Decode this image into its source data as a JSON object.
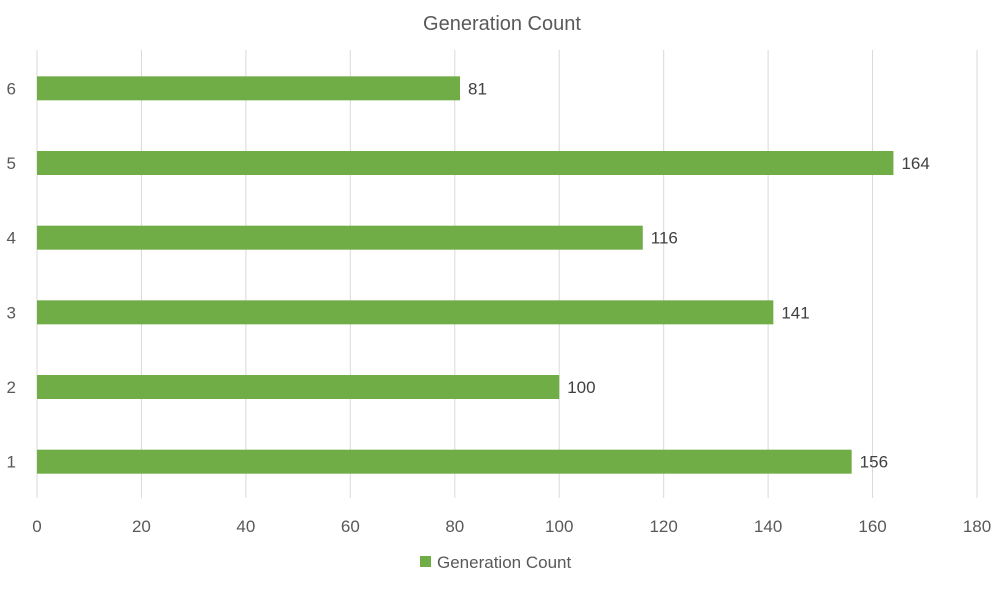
{
  "chart_data": {
    "type": "bar",
    "orientation": "horizontal",
    "title": "Generation Count",
    "categories": [
      "1",
      "2",
      "3",
      "4",
      "5",
      "6"
    ],
    "series": [
      {
        "name": "Generation Count",
        "values": [
          156,
          100,
          141,
          116,
          164,
          81
        ]
      }
    ],
    "xlim": [
      0,
      180
    ],
    "x_ticks": [
      0,
      20,
      40,
      60,
      80,
      100,
      120,
      140,
      160,
      180
    ],
    "grid": "vertical",
    "data_labels": true,
    "legend": "bottom",
    "colors": {
      "bar": "#70AD47",
      "grid": "#D9D9D9",
      "text": "#595959"
    }
  }
}
